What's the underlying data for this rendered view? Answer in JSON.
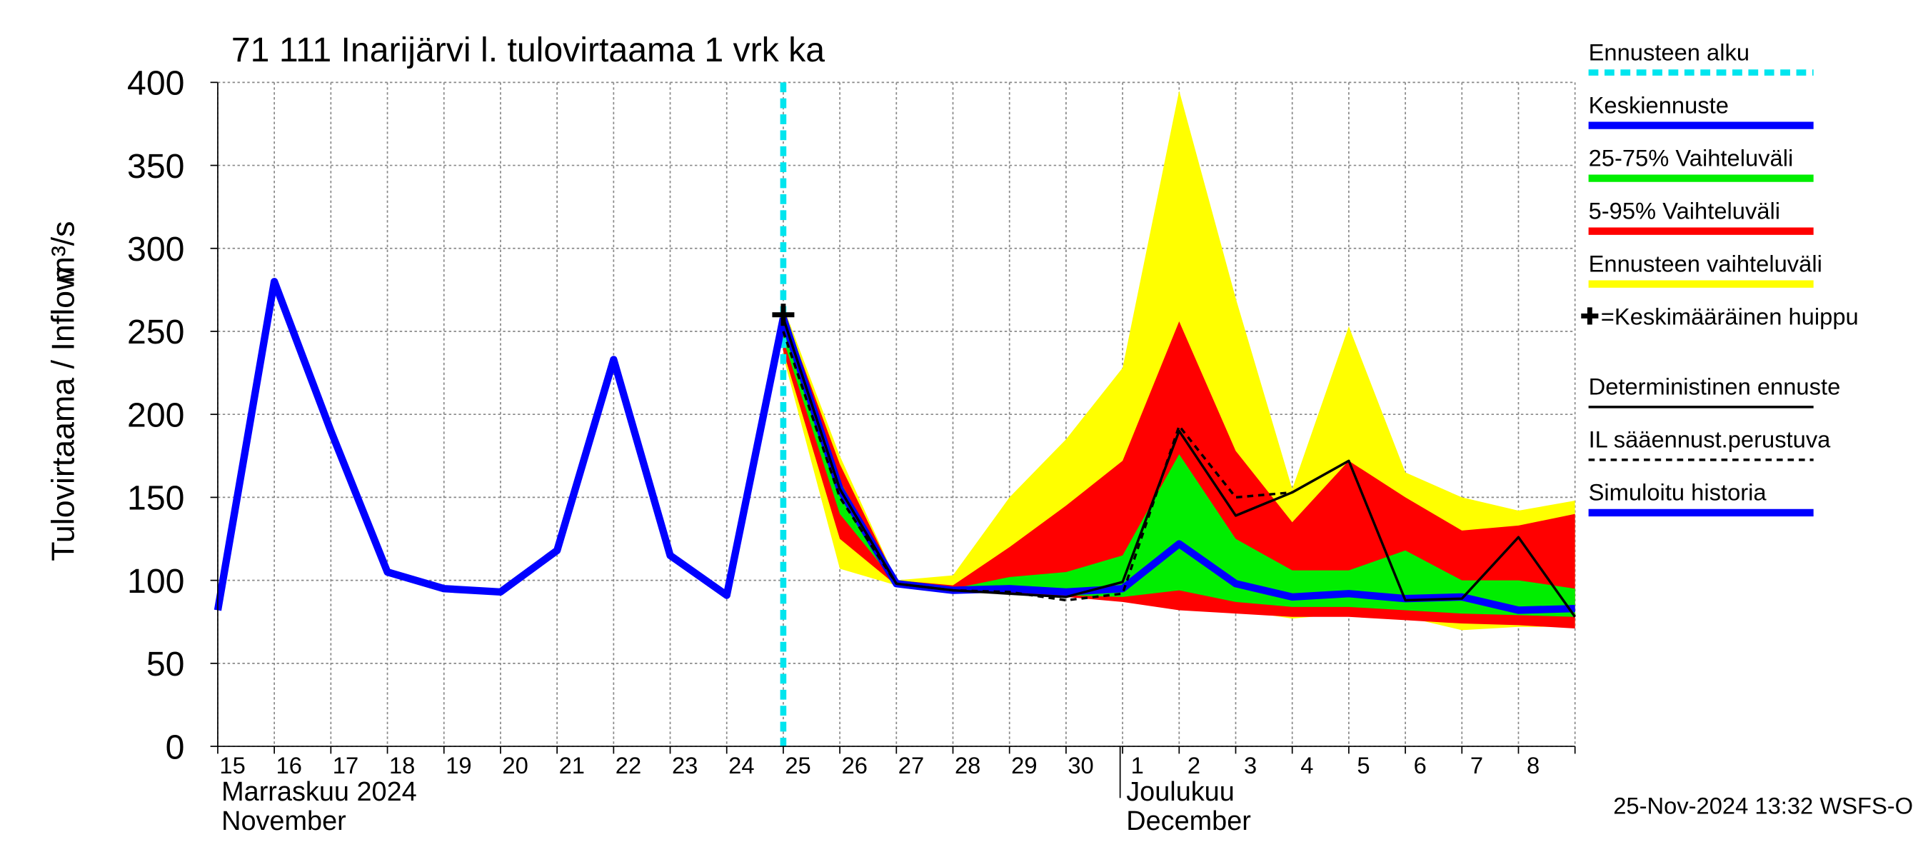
{
  "chart_data": {
    "type": "line",
    "title": "71 111 Inarijärvi l. tulovirtaama 1 vrk ka",
    "y_label": "Tulovirtaama / Inflow",
    "y_unit": "m³/s",
    "categories": [
      "15",
      "16",
      "17",
      "18",
      "19",
      "20",
      "21",
      "22",
      "23",
      "24",
      "25",
      "26",
      "27",
      "28",
      "29",
      "30",
      "1",
      "2",
      "3",
      "4",
      "5",
      "6",
      "7",
      "8",
      null
    ],
    "months": [
      {
        "index": 0,
        "fi": "Marraskuu 2024",
        "en": "November"
      },
      {
        "index": 16,
        "fi": "Joulukuu",
        "en": "December"
      }
    ],
    "ylim": [
      0,
      400
    ],
    "yticks": [
      0,
      50,
      100,
      150,
      200,
      250,
      300,
      350,
      400
    ],
    "grid": true,
    "bands": [
      {
        "name": "Ennusteen vaihteluväli",
        "color": "#ffff00",
        "high": [
          null,
          null,
          null,
          null,
          null,
          null,
          null,
          null,
          null,
          null,
          265,
          175,
          100,
          103,
          150,
          185,
          228,
          395,
          270,
          155,
          253,
          165,
          150,
          142,
          148
        ],
        "low": [
          null,
          null,
          null,
          null,
          null,
          null,
          null,
          null,
          null,
          null,
          235,
          107,
          97,
          93,
          92,
          90,
          88,
          85,
          82,
          77,
          80,
          78,
          70,
          72,
          72
        ]
      },
      {
        "name": "5-95% Vaihteluväli",
        "color": "#ff0000",
        "high": [
          null,
          null,
          null,
          null,
          null,
          null,
          null,
          null,
          null,
          null,
          262,
          170,
          100,
          97,
          120,
          145,
          172,
          256,
          178,
          135,
          172,
          150,
          130,
          133,
          140
        ],
        "low": [
          null,
          null,
          null,
          null,
          null,
          null,
          null,
          null,
          null,
          null,
          238,
          125,
          97,
          93,
          92,
          90,
          87,
          82,
          80,
          78,
          78,
          76,
          74,
          73,
          71
        ]
      },
      {
        "name": "25-75% Vaihteluväli",
        "color": "#00ee00",
        "high": [
          null,
          null,
          null,
          null,
          null,
          null,
          null,
          null,
          null,
          null,
          255,
          160,
          99,
          95,
          102,
          105,
          115,
          176,
          125,
          106,
          106,
          118,
          100,
          100,
          95
        ],
        "low": [
          null,
          null,
          null,
          null,
          null,
          null,
          null,
          null,
          null,
          null,
          245,
          140,
          98,
          94,
          93,
          91,
          90,
          94,
          87,
          84,
          84,
          82,
          80,
          79,
          78
        ]
      }
    ],
    "series": [
      {
        "name": "Keskiennuste",
        "color": "#0000ff",
        "width": 6,
        "dash": null,
        "values": [
          null,
          null,
          null,
          null,
          null,
          null,
          null,
          null,
          null,
          null,
          258,
          155,
          98,
          94,
          95,
          93,
          95,
          122,
          98,
          90,
          92,
          89,
          90,
          82,
          83
        ]
      },
      {
        "name": "Deterministinen ennuste",
        "color": "#000000",
        "width": 2,
        "dash": null,
        "values": [
          null,
          null,
          null,
          null,
          null,
          null,
          null,
          null,
          null,
          null,
          258,
          155,
          98,
          94,
          92,
          90,
          99,
          190,
          139,
          153,
          172,
          88,
          89,
          126,
          78
        ]
      },
      {
        "name": "IL sääennust.perustuva",
        "color": "#000000",
        "width": 2,
        "dash": "5 4",
        "values": [
          null,
          null,
          null,
          null,
          null,
          null,
          null,
          null,
          null,
          null,
          250,
          150,
          98,
          94,
          93,
          88,
          92,
          193,
          150,
          153,
          null,
          null,
          null,
          null,
          null
        ]
      },
      {
        "name": "Simuloitu historia",
        "color": "#0000ff",
        "width": 6,
        "dash": null,
        "values": [
          82,
          280,
          190,
          105,
          95,
          93,
          118,
          233,
          115,
          91,
          258,
          null,
          null,
          null,
          null,
          null,
          null,
          null,
          null,
          null,
          null,
          null,
          null,
          null,
          null
        ]
      }
    ],
    "forecast_start": {
      "name": "Ennusteen alku",
      "category": "25",
      "color": "#00e5ee"
    },
    "peak": {
      "name": "=Keskimääräinen huippu",
      "category": "25",
      "value": 260
    },
    "legend": [
      "forecast_start",
      "series.0",
      "bands.2",
      "bands.1",
      "bands.0",
      "peak",
      "series.1",
      "series.2",
      "series.3"
    ],
    "footer": "25-Nov-2024 13:32 WSFS-O"
  }
}
